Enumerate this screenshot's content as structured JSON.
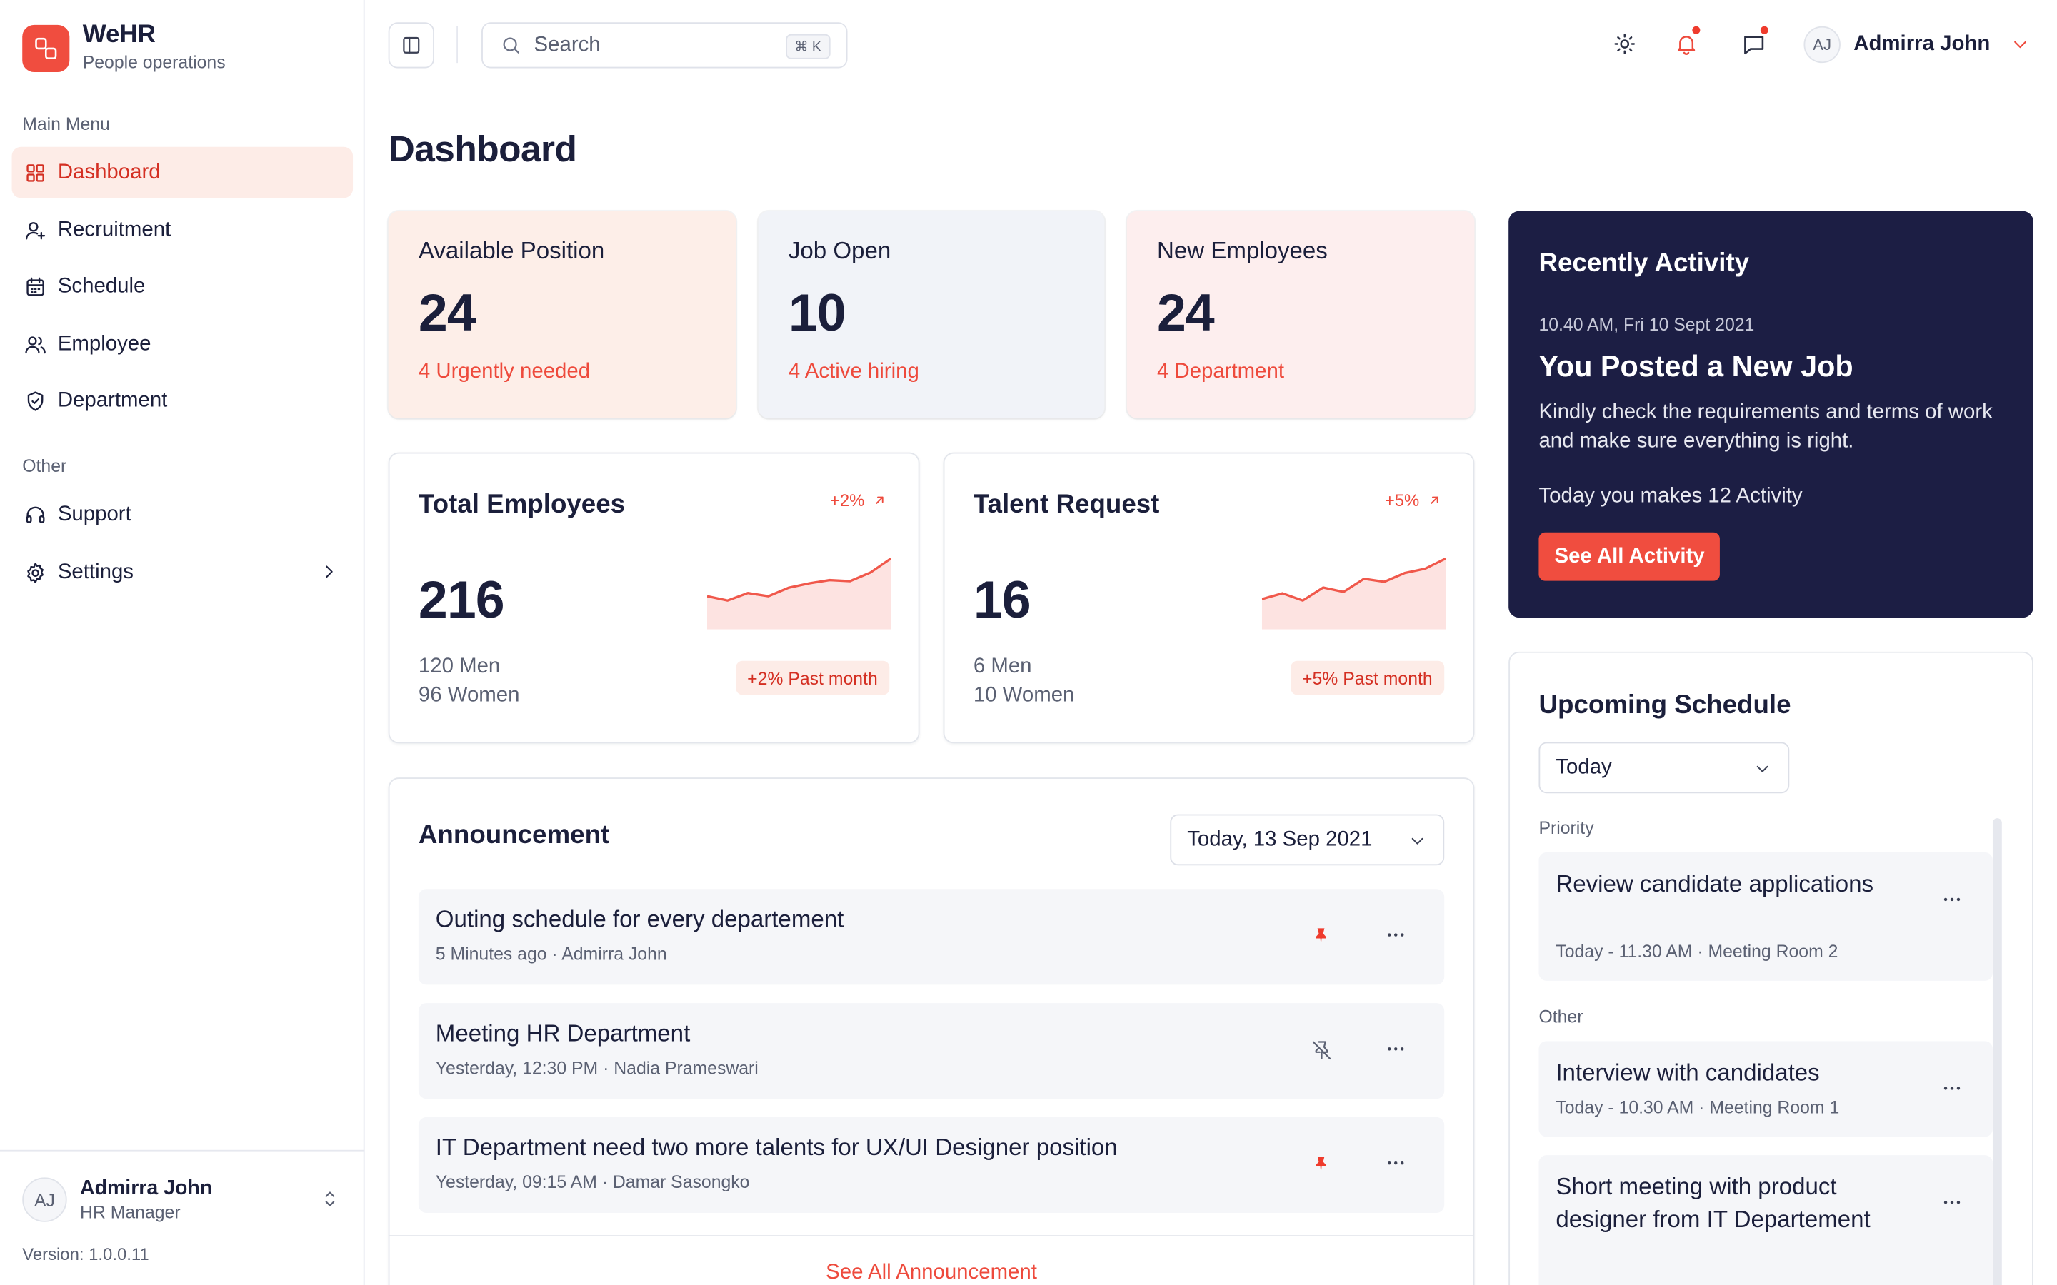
{
  "brand": {
    "name": "WeHR",
    "subtitle": "People operations"
  },
  "sidebar": {
    "main_menu_label": "Main Menu",
    "main_items": [
      {
        "label": "Dashboard",
        "icon": "grid-icon",
        "active": true
      },
      {
        "label": "Recruitment",
        "icon": "user-plus-icon"
      },
      {
        "label": "Schedule",
        "icon": "calendar-icon"
      },
      {
        "label": "Employee",
        "icon": "users-icon"
      },
      {
        "label": "Department",
        "icon": "shield-icon"
      }
    ],
    "other_label": "Other",
    "other_items": [
      {
        "label": "Support",
        "icon": "headset-icon"
      },
      {
        "label": "Settings",
        "icon": "gear-icon"
      }
    ],
    "user": {
      "initials": "AJ",
      "name": "Admirra John",
      "role": "HR Manager"
    },
    "version": "Version: 1.0.0.11"
  },
  "topbar": {
    "search_placeholder": "Search",
    "search_shortcut": "⌘ K",
    "user_initials": "AJ",
    "user_name": "Admirra John"
  },
  "page_title": "Dashboard",
  "stats": [
    {
      "label": "Available Position",
      "value": "24",
      "sub": "4 Urgently needed",
      "bg": "#fdeee8"
    },
    {
      "label": "Job Open",
      "value": "10",
      "sub": "4 Active hiring",
      "bg": "#f1f3f8"
    },
    {
      "label": "New Employees",
      "value": "24",
      "sub": "4 Department",
      "bg": "#fdeeee"
    }
  ],
  "metrics": [
    {
      "title": "Total Employees",
      "delta": "+2%",
      "value": "216",
      "line1": "120 Men",
      "line2": "96 Women",
      "pill": "+2% Past month",
      "trend": [
        10,
        9.6,
        10.3,
        10,
        10.8,
        11.2,
        11.5,
        11.4,
        12.2,
        13.5
      ]
    },
    {
      "title": "Talent Request",
      "delta": "+5%",
      "value": "16",
      "line1": "6 Men",
      "line2": "10 Women",
      "pill": "+5% Past month",
      "trend": [
        2,
        4,
        1.5,
        6,
        4.5,
        9,
        8,
        11,
        12.5,
        16
      ]
    }
  ],
  "announcement": {
    "title": "Announcement",
    "date_filter": "Today, 13 Sep 2021",
    "items": [
      {
        "title": "Outing schedule for every departement",
        "meta": "5 Minutes ago · Admirra John",
        "pinned": true
      },
      {
        "title": "Meeting HR Department",
        "meta": "Yesterday, 12:30 PM · Nadia Prameswari",
        "pinned": false
      },
      {
        "title": "IT Department need two more talents for UX/UI Designer position",
        "meta": "Yesterday, 09:15 AM · Damar Sasongko",
        "pinned": true
      }
    ],
    "see_all": "See All Announcement"
  },
  "activity": {
    "title": "Recently Activity",
    "time": "10.40 AM, Fri 10 Sept 2021",
    "headline": "You Posted a New Job",
    "description": "Kindly check the requirements and terms of work and make sure everything is right.",
    "count_text": "Today you makes 12 Activity",
    "button": "See All Activity"
  },
  "schedule": {
    "title": "Upcoming Schedule",
    "filter": "Today",
    "priority_label": "Priority",
    "other_label": "Other",
    "priority_items": [
      {
        "title": "Review candidate applications",
        "meta": "Today - 11.30 AM · Meeting Room 2"
      }
    ],
    "other_items": [
      {
        "title": "Interview with candidates",
        "meta": "Today - 10.30 AM · Meeting Room 1"
      },
      {
        "title": "Short meeting with product designer from IT Departement",
        "meta": ""
      }
    ]
  },
  "colors": {
    "accent": "#f04d3f",
    "accent_dark": "#d42f22",
    "navy": "#1c1e44",
    "chart_fill": "#fde3e1",
    "chart_line": "#f0584b"
  }
}
